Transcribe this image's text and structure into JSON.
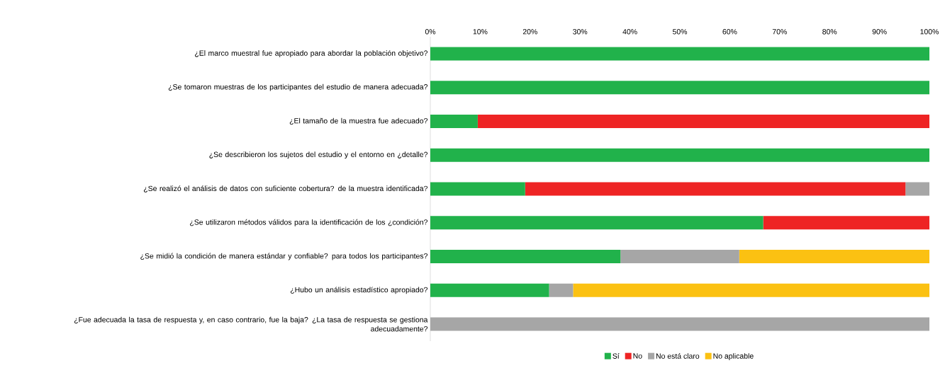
{
  "chart_data": {
    "type": "bar",
    "orientation": "horizontal",
    "stacked": true,
    "categories": [
      "¿El marco muestral fue apropiado para abordar la población objetivo?",
      "¿Se tomaron muestras de los participantes del estudio de manera adecuada?",
      "¿El tamaño de la muestra fue adecuado?",
      "¿Se describieron los sujetos del estudio y el entorno en ¿detalle?",
      "¿Se realizó el análisis de datos con suficiente cobertura? de la muestra identificada?",
      "¿Se utilizaron métodos válidos para la identificación de los ¿condición?",
      "¿Se midió la condición de manera estándar y confiable? para todos los participantes?",
      "¿Hubo un análisis estadístico apropiado?",
      "¿Fue adecuada la tasa de respuesta y, en caso contrario, fue la baja? ¿La tasa de respuesta se gestiona adecuadamente?"
    ],
    "series": [
      {
        "name": "Sí",
        "color": "#21b24b",
        "values": [
          100,
          100,
          9.5,
          100,
          19.0,
          66.7,
          38.1,
          23.8,
          null
        ]
      },
      {
        "name": "No",
        "color": "#ee2424",
        "values": [
          null,
          null,
          90.5,
          null,
          76.2,
          33.3,
          null,
          null,
          null
        ]
      },
      {
        "name": "No está claro",
        "color": "#a6a6a6",
        "values": [
          null,
          null,
          null,
          null,
          4.8,
          null,
          23.8,
          4.8,
          100
        ]
      },
      {
        "name": "No aplicable",
        "color": "#fbc112",
        "values": [
          null,
          null,
          null,
          null,
          null,
          null,
          38.1,
          71.4,
          null
        ]
      }
    ],
    "xlim": [
      0,
      100
    ],
    "xticks": [
      {
        "value": 0,
        "label": "0%"
      },
      {
        "value": 10,
        "label": "10%"
      },
      {
        "value": 20,
        "label": "20%"
      },
      {
        "value": 30,
        "label": "30%"
      },
      {
        "value": 40,
        "label": "40%"
      },
      {
        "value": 50,
        "label": "50%"
      },
      {
        "value": 60,
        "label": "60%"
      },
      {
        "value": 70,
        "label": "70%"
      },
      {
        "value": 80,
        "label": "80%"
      },
      {
        "value": 90,
        "label": "90%"
      },
      {
        "value": 100,
        "label": "100%"
      }
    ],
    "legend": "bottom"
  }
}
